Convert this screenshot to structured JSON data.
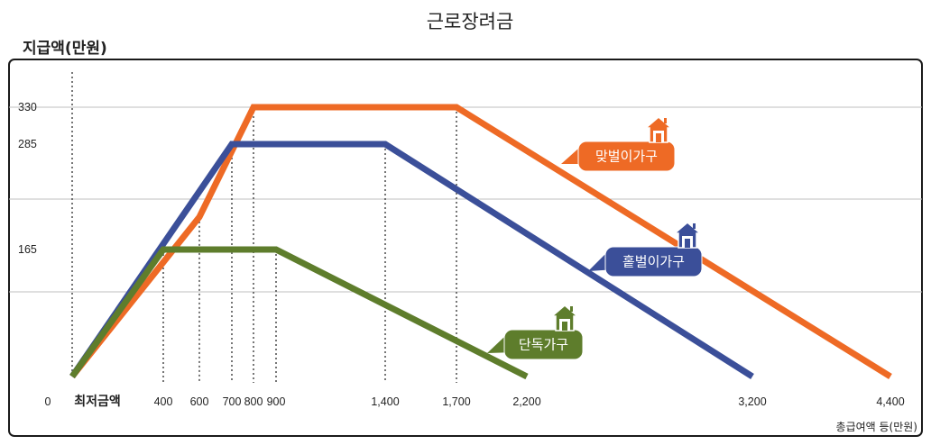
{
  "chart_data": {
    "type": "line",
    "title": "근로장려금",
    "ylabel": "지급액(만원)",
    "xlabel": "총급여액 등(만원)",
    "x_origin_label": "0",
    "min_wage_label": "최저금액",
    "x_ticks": [
      400,
      600,
      700,
      800,
      900,
      1400,
      1700,
      2200,
      3200,
      4400
    ],
    "x_tick_labels": [
      "400",
      "600",
      "700",
      "800",
      "900",
      "1,400",
      "1,700",
      "2,200",
      "3,200",
      "4,400"
    ],
    "y_ticks": [
      165,
      285,
      330
    ],
    "y_tick_labels": [
      "165",
      "285",
      "330"
    ],
    "xlim": [
      0,
      4400
    ],
    "ylim": [
      0,
      330
    ],
    "series": [
      {
        "name": "맞벌이가구",
        "color": "#EE6A25",
        "icon": "house-icon",
        "x": [
          0,
          600,
          800,
          1700,
          4400
        ],
        "y": [
          0,
          202,
          330,
          330,
          0
        ]
      },
      {
        "name": "홑벌이가구",
        "color": "#3B4F99",
        "icon": "house-icon",
        "x": [
          0,
          700,
          1400,
          3200
        ],
        "y": [
          0,
          285,
          285,
          0
        ]
      },
      {
        "name": "단독가구",
        "color": "#5E7D2C",
        "icon": "house-icon",
        "x": [
          0,
          400,
          900,
          2200
        ],
        "y": [
          0,
          165,
          165,
          0
        ]
      }
    ]
  }
}
